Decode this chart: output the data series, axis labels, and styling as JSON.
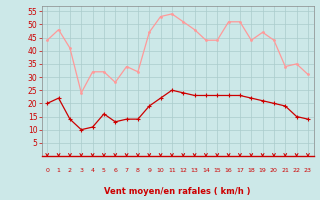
{
  "x": [
    0,
    1,
    2,
    3,
    4,
    5,
    6,
    7,
    8,
    9,
    10,
    11,
    12,
    13,
    14,
    15,
    16,
    17,
    18,
    19,
    20,
    21,
    22,
    23
  ],
  "wind_avg": [
    20,
    22,
    14,
    10,
    11,
    16,
    13,
    14,
    14,
    19,
    22,
    25,
    24,
    23,
    23,
    23,
    23,
    23,
    22,
    21,
    20,
    19,
    15,
    14
  ],
  "wind_gust": [
    44,
    48,
    41,
    24,
    32,
    32,
    28,
    34,
    32,
    47,
    53,
    54,
    51,
    48,
    44,
    44,
    51,
    51,
    44,
    47,
    44,
    34,
    35,
    31
  ],
  "line_color_avg": "#cc0000",
  "line_color_gust": "#ff9999",
  "bg_color": "#cce8e8",
  "grid_color": "#aacccc",
  "xlabel": "Vent moyen/en rafales ( km/h )",
  "xlabel_color": "#cc0000",
  "tick_color": "#cc0000",
  "arrow_color": "#cc0000",
  "ylim": [
    0,
    57
  ],
  "yticks": [
    5,
    10,
    15,
    20,
    25,
    30,
    35,
    40,
    45,
    50,
    55
  ],
  "xlim": [
    -0.5,
    23.5
  ],
  "marker_avg": "P",
  "marker_gust": "o"
}
